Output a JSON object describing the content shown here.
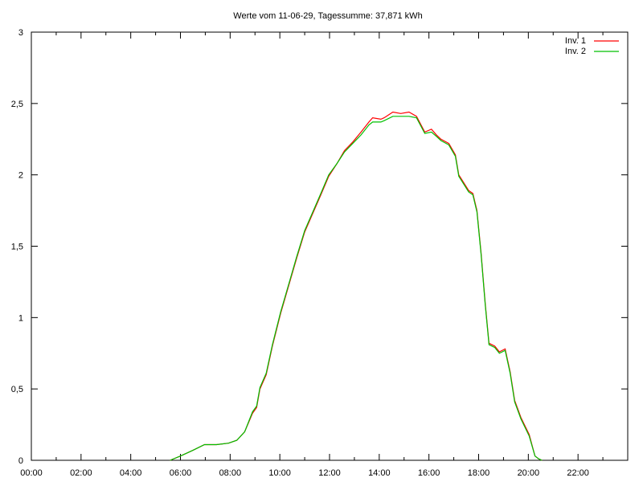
{
  "chart_data": {
    "type": "line",
    "title": "Werte vom 11-06-29, Tagessumme: 37,871 kWh",
    "xlabel": "",
    "ylabel": "",
    "xlim": [
      "00:00",
      "24:00"
    ],
    "ylim": [
      0,
      3
    ],
    "x_ticks": [
      "00:00",
      "02:00",
      "04:00",
      "06:00",
      "08:00",
      "10:00",
      "12:00",
      "14:00",
      "16:00",
      "18:00",
      "20:00",
      "22:00"
    ],
    "y_ticks": [
      "0",
      "0,5",
      "1",
      "1,5",
      "2",
      "2,5",
      "3"
    ],
    "grid": false,
    "legend_position": "top-right",
    "x": [
      "05:35",
      "06:00",
      "06:30",
      "06:58",
      "07:27",
      "07:56",
      "08:16",
      "08:35",
      "08:54",
      "09:04",
      "09:12",
      "09:27",
      "09:42",
      "10:02",
      "10:21",
      "10:41",
      "11:00",
      "11:18",
      "11:39",
      "11:58",
      "12:18",
      "12:36",
      "12:56",
      "13:16",
      "13:35",
      "13:44",
      "14:04",
      "14:12",
      "14:33",
      "14:52",
      "15:12",
      "15:30",
      "15:50",
      "16:06",
      "16:18",
      "16:29",
      "16:48",
      "17:04",
      "17:12",
      "17:36",
      "17:46",
      "17:56",
      "18:06",
      "18:16",
      "18:25",
      "18:39",
      "18:50",
      "19:04",
      "19:16",
      "19:27",
      "19:42",
      "20:02",
      "20:16",
      "20:25",
      "20:33"
    ],
    "series": [
      {
        "name": "Inv. 1",
        "color": "#ff0000",
        "values": [
          0,
          0.03,
          0.07,
          0.11,
          0.11,
          0.12,
          0.14,
          0.2,
          0.33,
          0.37,
          0.5,
          0.6,
          0.8,
          1.03,
          1.22,
          1.42,
          1.6,
          1.72,
          1.86,
          1.99,
          2.08,
          2.17,
          2.23,
          2.3,
          2.37,
          2.4,
          2.39,
          2.4,
          2.44,
          2.43,
          2.44,
          2.41,
          2.3,
          2.32,
          2.28,
          2.25,
          2.22,
          2.14,
          2.0,
          1.89,
          1.87,
          1.75,
          1.45,
          1.1,
          0.82,
          0.8,
          0.76,
          0.78,
          0.62,
          0.42,
          0.3,
          0.18,
          0.03,
          0.01,
          0
        ]
      },
      {
        "name": "Inv. 2",
        "color": "#00c000",
        "values": [
          0,
          0.03,
          0.07,
          0.11,
          0.11,
          0.12,
          0.14,
          0.2,
          0.34,
          0.38,
          0.51,
          0.61,
          0.81,
          1.04,
          1.23,
          1.43,
          1.61,
          1.73,
          1.87,
          2.0,
          2.08,
          2.16,
          2.22,
          2.28,
          2.35,
          2.37,
          2.37,
          2.38,
          2.41,
          2.41,
          2.41,
          2.4,
          2.29,
          2.3,
          2.27,
          2.24,
          2.21,
          2.13,
          1.99,
          1.88,
          1.86,
          1.74,
          1.44,
          1.09,
          0.81,
          0.79,
          0.75,
          0.77,
          0.61,
          0.41,
          0.29,
          0.17,
          0.03,
          0.01,
          0
        ]
      }
    ]
  }
}
